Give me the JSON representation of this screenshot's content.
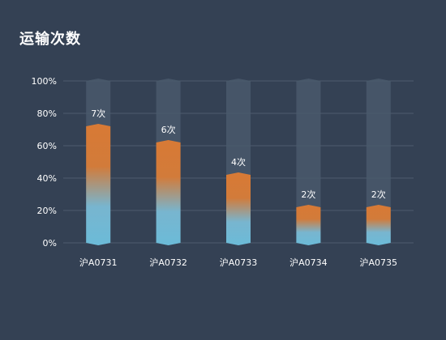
{
  "chart_data": {
    "type": "bar",
    "title": "运输次数",
    "categories": [
      "沪A0731",
      "沪A0732",
      "沪A0733",
      "沪A0734",
      "沪A0735"
    ],
    "values": [
      72,
      62,
      42,
      22,
      22
    ],
    "data_labels": [
      "7次",
      "6次",
      "4次",
      "2次",
      "2次"
    ],
    "background_bar_value": 100,
    "ylim": [
      0,
      100
    ],
    "yticks": [
      "0%",
      "20%",
      "40%",
      "60%",
      "80%",
      "100%"
    ],
    "grid": true,
    "legend": "none",
    "colors": {
      "background": "#344154",
      "bar_top": "#d87a35",
      "bar_bottom": "#6bbbd8",
      "track": "#4a596c",
      "grid": "#4e5c6e",
      "text": "#ffffff"
    }
  }
}
